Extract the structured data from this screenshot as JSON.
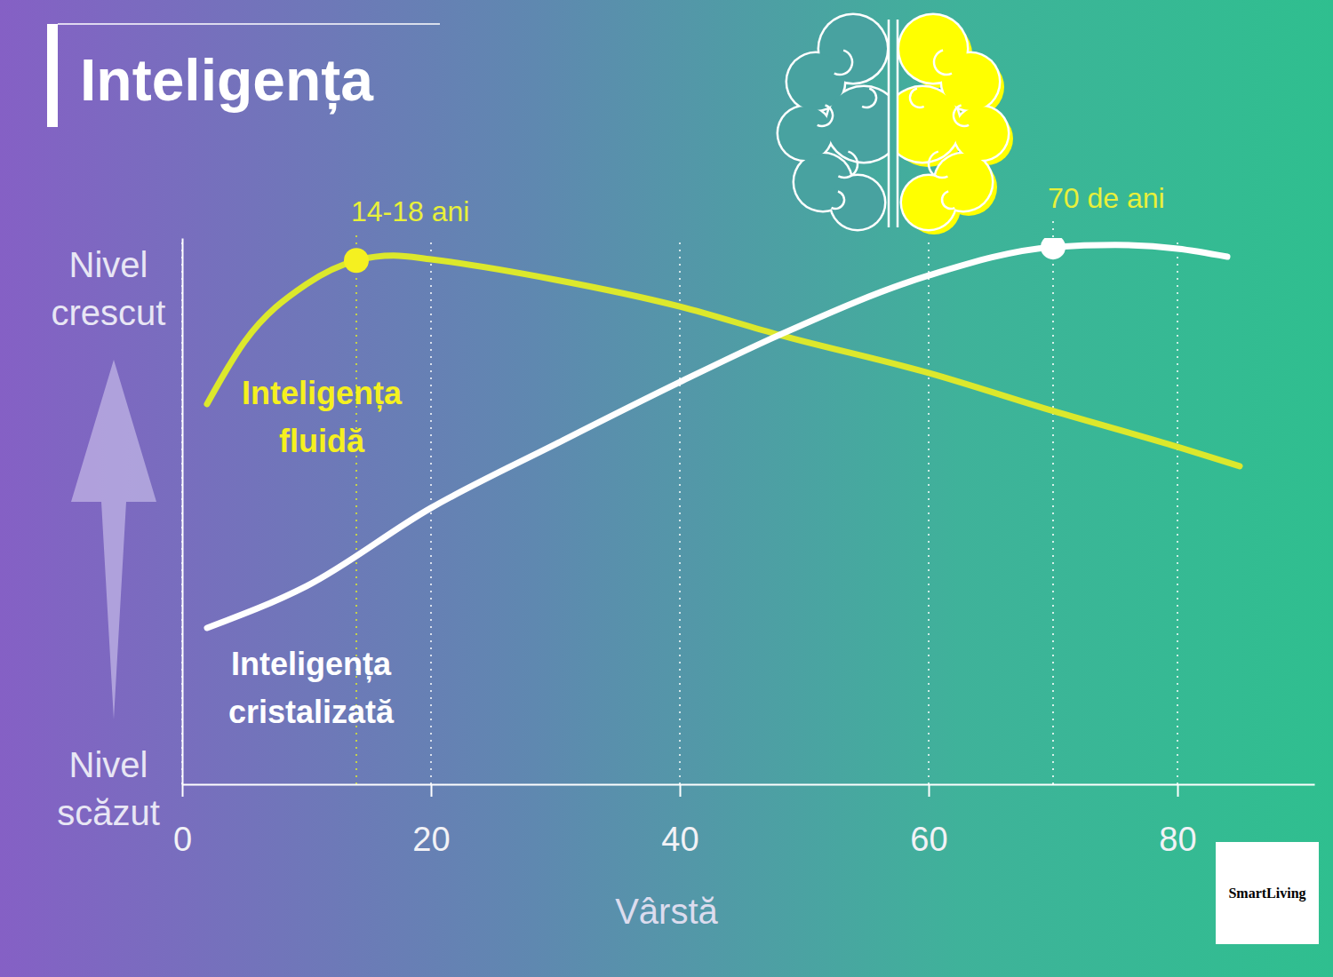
{
  "chart_data": {
    "type": "line",
    "title": "Inteligența",
    "x_label": "Vârstă",
    "y_label_high": "Nivel crescut",
    "y_label_low": "Nivel scăzut",
    "xlim": [
      0,
      91
    ],
    "xticks": [
      0,
      20,
      40,
      60,
      80
    ],
    "ylim": [
      0,
      102
    ],
    "grid": true,
    "tick_labels": "x",
    "series": [
      {
        "name": "Inteligența fluidă",
        "color": "#dce82c",
        "x": [
          2,
          5,
          10,
          14,
          17,
          20,
          30,
          40,
          48,
          60,
          70,
          80,
          85
        ],
        "values": [
          71,
          82.6,
          93.4,
          97.8,
          98.7,
          98,
          94.2,
          89.2,
          83.9,
          76.8,
          69.7,
          63,
          59.4
        ]
      },
      {
        "name": "Inteligența cristalizată",
        "color": "#ffffff",
        "x": [
          2,
          10,
          20,
          30,
          40,
          48,
          60,
          70,
          75,
          80,
          84
        ],
        "values": [
          29.2,
          37,
          51.6,
          63.5,
          75.1,
          83.9,
          95,
          100.3,
          100.7,
          100,
          98.5
        ]
      }
    ],
    "annotations": [
      {
        "text": "14-18 ani",
        "x": 14,
        "y": 97.8,
        "color": "#e8f03a"
      },
      {
        "text": "70 de ani",
        "x": 70,
        "y": 100.3,
        "color": "#e8f03a"
      }
    ],
    "source": "SmartLiving"
  }
}
